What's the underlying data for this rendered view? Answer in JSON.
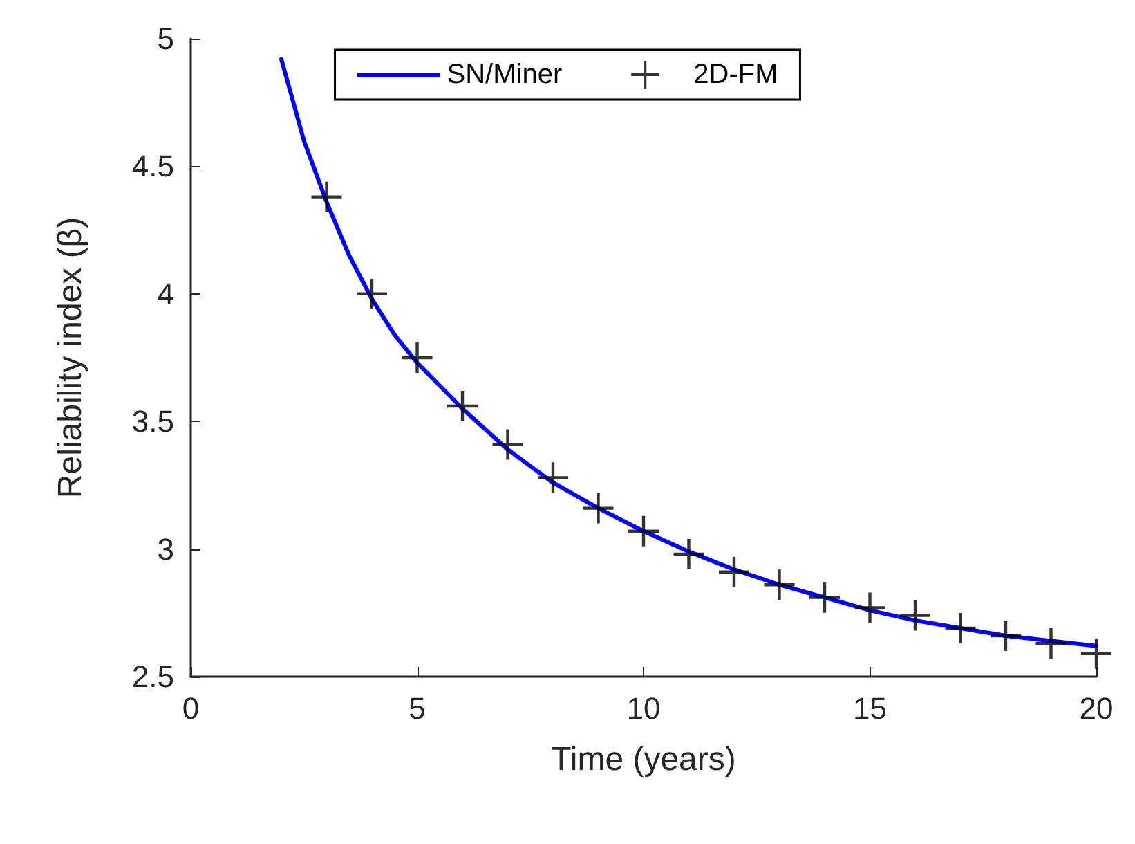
{
  "chart_data": {
    "type": "line",
    "xlabel": "Time (years)",
    "ylabel": "Reliability index (β)",
    "xlim": [
      0,
      20
    ],
    "xticks": [
      0,
      5,
      10,
      15,
      20
    ],
    "ylim": [
      2.5,
      5
    ],
    "yticks": [
      2.5,
      3,
      3.5,
      4,
      4.5,
      5
    ],
    "grid": false,
    "legend": "top",
    "series": [
      {
        "name": "SN/Miner",
        "color": "#0000ff",
        "marker": "none",
        "line_style": "solid",
        "x": [
          2,
          2.5,
          3,
          3.5,
          4,
          4.5,
          5,
          6,
          7,
          8,
          9,
          10,
          11,
          12,
          13,
          14,
          15,
          16,
          17,
          18,
          19,
          20
        ],
        "values": [
          4.92,
          4.6,
          4.36,
          4.15,
          3.98,
          3.84,
          3.73,
          3.55,
          3.39,
          3.26,
          3.16,
          3.07,
          2.99,
          2.92,
          2.86,
          2.81,
          2.76,
          2.72,
          2.69,
          2.66,
          2.64,
          2.62
        ]
      },
      {
        "name": "2D-FM",
        "type": "scatter",
        "color": "#000000",
        "marker": "cross",
        "x": [
          3,
          4,
          5,
          6,
          7,
          8,
          9,
          10,
          11,
          12,
          13,
          14,
          15,
          16,
          17,
          18,
          19,
          20
        ],
        "values": [
          4.38,
          4.0,
          3.75,
          3.56,
          3.41,
          3.28,
          3.16,
          3.07,
          2.98,
          2.91,
          2.86,
          2.81,
          2.77,
          2.74,
          2.69,
          2.66,
          2.63,
          2.59
        ]
      }
    ]
  }
}
